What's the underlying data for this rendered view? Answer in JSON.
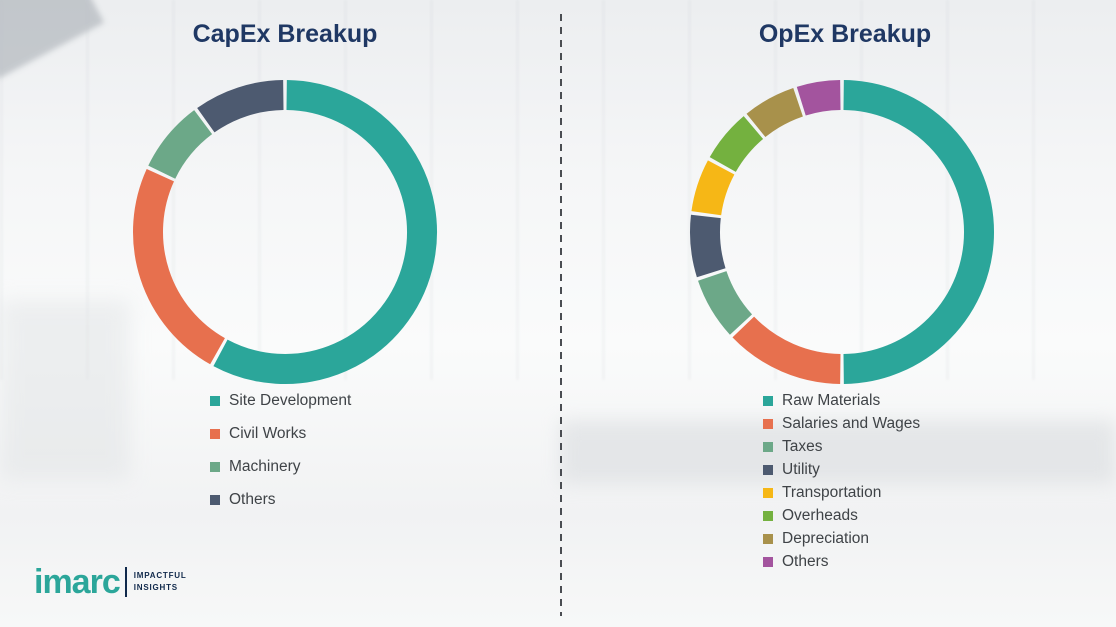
{
  "palette": {
    "title": "#1F3864",
    "legend_text": "#3F4347",
    "logo_teal": "#2BA69A",
    "logo_navy": "#10294B"
  },
  "chart_data": [
    {
      "type": "pie",
      "style": "donut",
      "title": "CapEx Breakup",
      "labels": [
        "Site Development",
        "Civil Works",
        "Machinery",
        "Others"
      ],
      "values": [
        58,
        24,
        8,
        10
      ],
      "unit": "% (estimated from arc angles; no data labels shown)",
      "colors": [
        "#2BA69A",
        "#E7704E",
        "#6CA888",
        "#4D5A70"
      ],
      "legend_position": "bottom",
      "start_angle_deg": 0,
      "direction": "clockwise"
    },
    {
      "type": "pie",
      "style": "donut",
      "title": "OpEx Breakup",
      "labels": [
        "Raw Materials",
        "Salaries and Wages",
        "Taxes",
        "Utility",
        "Transportation",
        "Overheads",
        "Depreciation",
        "Others"
      ],
      "values": [
        50,
        13,
        7,
        7,
        6,
        6,
        6,
        5
      ],
      "unit": "% (estimated from arc angles; no data labels shown)",
      "colors": [
        "#2BA69A",
        "#E7704E",
        "#6CA888",
        "#4D5A70",
        "#F6B716",
        "#74B13F",
        "#A8914B",
        "#A3549E"
      ],
      "legend_position": "bottom",
      "start_angle_deg": 0,
      "direction": "clockwise"
    }
  ],
  "logo": {
    "brand": "imarc",
    "tagline": [
      "IMPACTFUL",
      "INSIGHTS"
    ]
  }
}
